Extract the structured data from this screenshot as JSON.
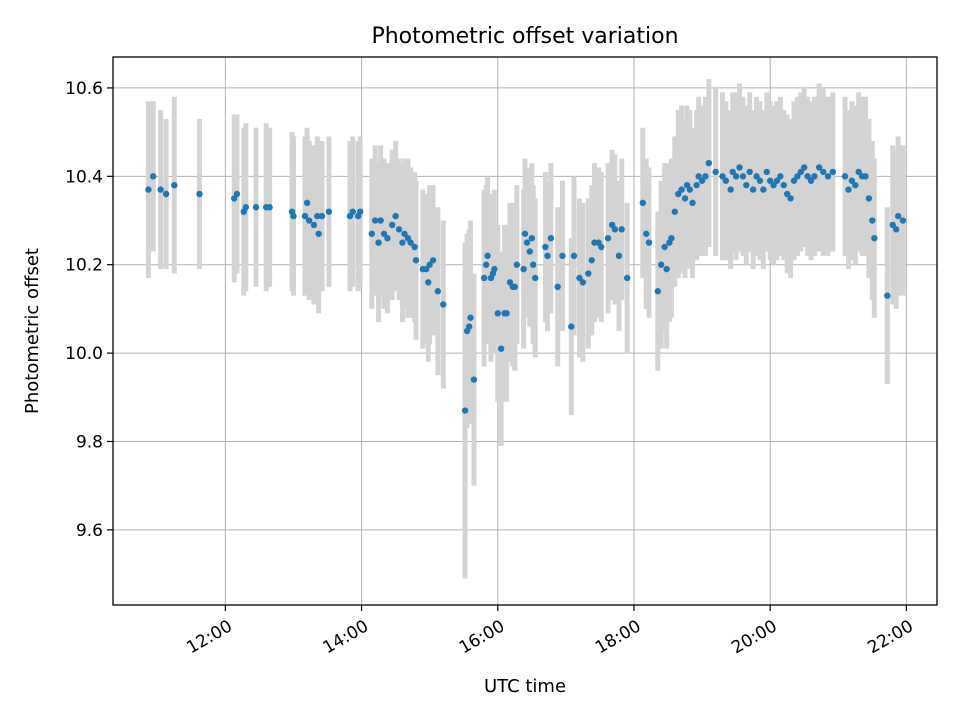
{
  "chart_data": {
    "type": "scatter",
    "title": "Photometric offset variation",
    "xlabel": "UTC time",
    "ylabel": "Photometric offset",
    "x_unit": "hours (UTC, decimal)",
    "xlim": [
      10.35,
      22.45
    ],
    "ylim": [
      9.43,
      10.67
    ],
    "xticks": [
      {
        "value": 12,
        "label": "12:00"
      },
      {
        "value": 14,
        "label": "14:00"
      },
      {
        "value": 16,
        "label": "16:00"
      },
      {
        "value": 18,
        "label": "18:00"
      },
      {
        "value": 20,
        "label": "20:00"
      },
      {
        "value": 22,
        "label": "22:00"
      }
    ],
    "yticks": [
      {
        "value": 9.6,
        "label": "9.6"
      },
      {
        "value": 9.8,
        "label": "9.8"
      },
      {
        "value": 10.0,
        "label": "10.0"
      },
      {
        "value": 10.2,
        "label": "10.2"
      },
      {
        "value": 10.4,
        "label": "10.4"
      },
      {
        "value": 10.6,
        "label": "10.6"
      }
    ],
    "grid": true,
    "colors": {
      "points": "#1f77b4",
      "error_bars": "#d3d3d3",
      "grid": "#b0b0b0"
    },
    "series": [
      {
        "marker_color": "#1f77b4",
        "errorbar_color": "#d3d3d3",
        "points": [
          [
            10.87,
            10.37,
            0.2
          ],
          [
            10.94,
            10.4,
            0.17
          ],
          [
            11.05,
            10.37,
            0.18
          ],
          [
            11.13,
            10.36,
            0.17
          ],
          [
            11.25,
            10.38,
            0.2
          ],
          [
            11.62,
            10.36,
            0.17
          ],
          [
            12.13,
            10.35,
            0.19
          ],
          [
            12.17,
            10.36,
            0.18
          ],
          [
            12.27,
            10.32,
            0.19
          ],
          [
            12.3,
            10.33,
            0.19
          ],
          [
            12.45,
            10.33,
            0.18
          ],
          [
            12.6,
            10.33,
            0.19
          ],
          [
            12.65,
            10.33,
            0.18
          ],
          [
            12.98,
            10.32,
            0.18
          ],
          [
            13.0,
            10.31,
            0.18
          ],
          [
            13.17,
            10.31,
            0.18
          ],
          [
            13.2,
            10.34,
            0.17
          ],
          [
            13.23,
            10.3,
            0.18
          ],
          [
            13.3,
            10.29,
            0.18
          ],
          [
            13.35,
            10.31,
            0.18
          ],
          [
            13.37,
            10.27,
            0.18
          ],
          [
            13.42,
            10.31,
            0.17
          ],
          [
            13.52,
            10.32,
            0.17
          ],
          [
            13.83,
            10.31,
            0.17
          ],
          [
            13.87,
            10.32,
            0.17
          ],
          [
            13.95,
            10.31,
            0.17
          ],
          [
            13.98,
            10.32,
            0.17
          ],
          [
            14.15,
            10.27,
            0.17
          ],
          [
            14.2,
            10.3,
            0.17
          ],
          [
            14.25,
            10.25,
            0.18
          ],
          [
            14.28,
            10.3,
            0.17
          ],
          [
            14.33,
            10.27,
            0.17
          ],
          [
            14.38,
            10.26,
            0.17
          ],
          [
            14.45,
            10.29,
            0.17
          ],
          [
            14.5,
            10.31,
            0.17
          ],
          [
            14.55,
            10.28,
            0.16
          ],
          [
            14.6,
            10.25,
            0.18
          ],
          [
            14.63,
            10.27,
            0.17
          ],
          [
            14.68,
            10.26,
            0.18
          ],
          [
            14.72,
            10.25,
            0.17
          ],
          [
            14.78,
            10.24,
            0.17
          ],
          [
            14.8,
            10.21,
            0.18
          ],
          [
            14.9,
            10.19,
            0.18
          ],
          [
            14.95,
            10.19,
            0.17
          ],
          [
            14.98,
            10.16,
            0.18
          ],
          [
            15.0,
            10.2,
            0.18
          ],
          [
            15.05,
            10.21,
            0.17
          ],
          [
            15.12,
            10.14,
            0.19
          ],
          [
            15.2,
            10.11,
            0.19
          ],
          [
            15.52,
            9.87,
            0.38
          ],
          [
            15.55,
            10.05,
            0.22
          ],
          [
            15.58,
            10.06,
            0.22
          ],
          [
            15.6,
            10.08,
            0.22
          ],
          [
            15.65,
            9.94,
            0.24
          ],
          [
            15.8,
            10.17,
            0.2
          ],
          [
            15.83,
            10.2,
            0.18
          ],
          [
            15.85,
            10.22,
            0.18
          ],
          [
            15.9,
            10.17,
            0.19
          ],
          [
            15.93,
            10.18,
            0.18
          ],
          [
            15.95,
            10.19,
            0.18
          ],
          [
            16.0,
            10.09,
            0.2
          ],
          [
            16.05,
            10.01,
            0.22
          ],
          [
            16.1,
            10.09,
            0.2
          ],
          [
            16.13,
            10.09,
            0.2
          ],
          [
            16.18,
            10.16,
            0.18
          ],
          [
            16.22,
            10.15,
            0.18
          ],
          [
            16.25,
            10.15,
            0.19
          ],
          [
            16.28,
            10.2,
            0.18
          ],
          [
            16.38,
            10.19,
            0.18
          ],
          [
            16.4,
            10.27,
            0.17
          ],
          [
            16.43,
            10.25,
            0.17
          ],
          [
            16.47,
            10.23,
            0.17
          ],
          [
            16.5,
            10.26,
            0.17
          ],
          [
            16.52,
            10.2,
            0.18
          ],
          [
            16.55,
            10.17,
            0.18
          ],
          [
            16.7,
            10.24,
            0.17
          ],
          [
            16.73,
            10.22,
            0.17
          ],
          [
            16.78,
            10.26,
            0.17
          ],
          [
            16.88,
            10.15,
            0.18
          ],
          [
            16.95,
            10.22,
            0.17
          ],
          [
            17.08,
            10.06,
            0.2
          ],
          [
            17.12,
            10.22,
            0.18
          ],
          [
            17.2,
            10.17,
            0.18
          ],
          [
            17.25,
            10.16,
            0.18
          ],
          [
            17.33,
            10.18,
            0.17
          ],
          [
            17.38,
            10.21,
            0.17
          ],
          [
            17.42,
            10.25,
            0.18
          ],
          [
            17.48,
            10.25,
            0.17
          ],
          [
            17.52,
            10.24,
            0.17
          ],
          [
            17.62,
            10.26,
            0.17
          ],
          [
            17.68,
            10.29,
            0.17
          ],
          [
            17.72,
            10.28,
            0.17
          ],
          [
            17.78,
            10.22,
            0.17
          ],
          [
            17.82,
            10.28,
            0.16
          ],
          [
            17.9,
            10.17,
            0.17
          ],
          [
            18.13,
            10.34,
            0.17
          ],
          [
            18.18,
            10.27,
            0.17
          ],
          [
            18.22,
            10.25,
            0.17
          ],
          [
            18.35,
            10.14,
            0.18
          ],
          [
            18.4,
            10.2,
            0.19
          ],
          [
            18.45,
            10.24,
            0.19
          ],
          [
            18.48,
            10.19,
            0.18
          ],
          [
            18.52,
            10.25,
            0.18
          ],
          [
            18.55,
            10.26,
            0.18
          ],
          [
            18.6,
            10.32,
            0.17
          ],
          [
            18.65,
            10.36,
            0.19
          ],
          [
            18.7,
            10.37,
            0.19
          ],
          [
            18.75,
            10.35,
            0.18
          ],
          [
            18.78,
            10.38,
            0.18
          ],
          [
            18.82,
            10.37,
            0.18
          ],
          [
            18.86,
            10.34,
            0.17
          ],
          [
            18.92,
            10.38,
            0.17
          ],
          [
            18.95,
            10.4,
            0.18
          ],
          [
            19.0,
            10.39,
            0.17
          ],
          [
            19.05,
            10.4,
            0.18
          ],
          [
            19.1,
            10.43,
            0.19
          ],
          [
            19.2,
            10.41,
            0.19
          ],
          [
            19.3,
            10.4,
            0.19
          ],
          [
            19.35,
            10.39,
            0.18
          ],
          [
            19.42,
            10.37,
            0.18
          ],
          [
            19.45,
            10.41,
            0.18
          ],
          [
            19.5,
            10.4,
            0.19
          ],
          [
            19.55,
            10.42,
            0.19
          ],
          [
            19.6,
            10.4,
            0.18
          ],
          [
            19.65,
            10.38,
            0.18
          ],
          [
            19.7,
            10.41,
            0.18
          ],
          [
            19.75,
            10.37,
            0.18
          ],
          [
            19.8,
            10.4,
            0.18
          ],
          [
            19.85,
            10.39,
            0.18
          ],
          [
            19.9,
            10.37,
            0.18
          ],
          [
            19.95,
            10.41,
            0.18
          ],
          [
            20.0,
            10.39,
            0.18
          ],
          [
            20.05,
            10.38,
            0.18
          ],
          [
            20.1,
            10.39,
            0.18
          ],
          [
            20.15,
            10.4,
            0.18
          ],
          [
            20.2,
            10.38,
            0.17
          ],
          [
            20.25,
            10.36,
            0.18
          ],
          [
            20.3,
            10.35,
            0.18
          ],
          [
            20.35,
            10.39,
            0.18
          ],
          [
            20.4,
            10.4,
            0.18
          ],
          [
            20.45,
            10.41,
            0.18
          ],
          [
            20.5,
            10.42,
            0.18
          ],
          [
            20.55,
            10.4,
            0.18
          ],
          [
            20.6,
            10.39,
            0.18
          ],
          [
            20.65,
            10.4,
            0.18
          ],
          [
            20.72,
            10.42,
            0.19
          ],
          [
            20.78,
            10.41,
            0.19
          ],
          [
            20.85,
            10.4,
            0.18
          ],
          [
            20.92,
            10.41,
            0.18
          ],
          [
            21.1,
            10.4,
            0.18
          ],
          [
            21.15,
            10.37,
            0.18
          ],
          [
            21.2,
            10.39,
            0.18
          ],
          [
            21.25,
            10.38,
            0.18
          ],
          [
            21.3,
            10.41,
            0.18
          ],
          [
            21.35,
            10.4,
            0.18
          ],
          [
            21.4,
            10.4,
            0.18
          ],
          [
            21.45,
            10.35,
            0.18
          ],
          [
            21.5,
            10.3,
            0.18
          ],
          [
            21.53,
            10.26,
            0.18
          ],
          [
            21.72,
            10.13,
            0.2
          ],
          [
            21.8,
            10.29,
            0.18
          ],
          [
            21.85,
            10.28,
            0.18
          ],
          [
            21.88,
            10.31,
            0.18
          ],
          [
            21.95,
            10.3,
            0.17
          ]
        ]
      }
    ]
  }
}
